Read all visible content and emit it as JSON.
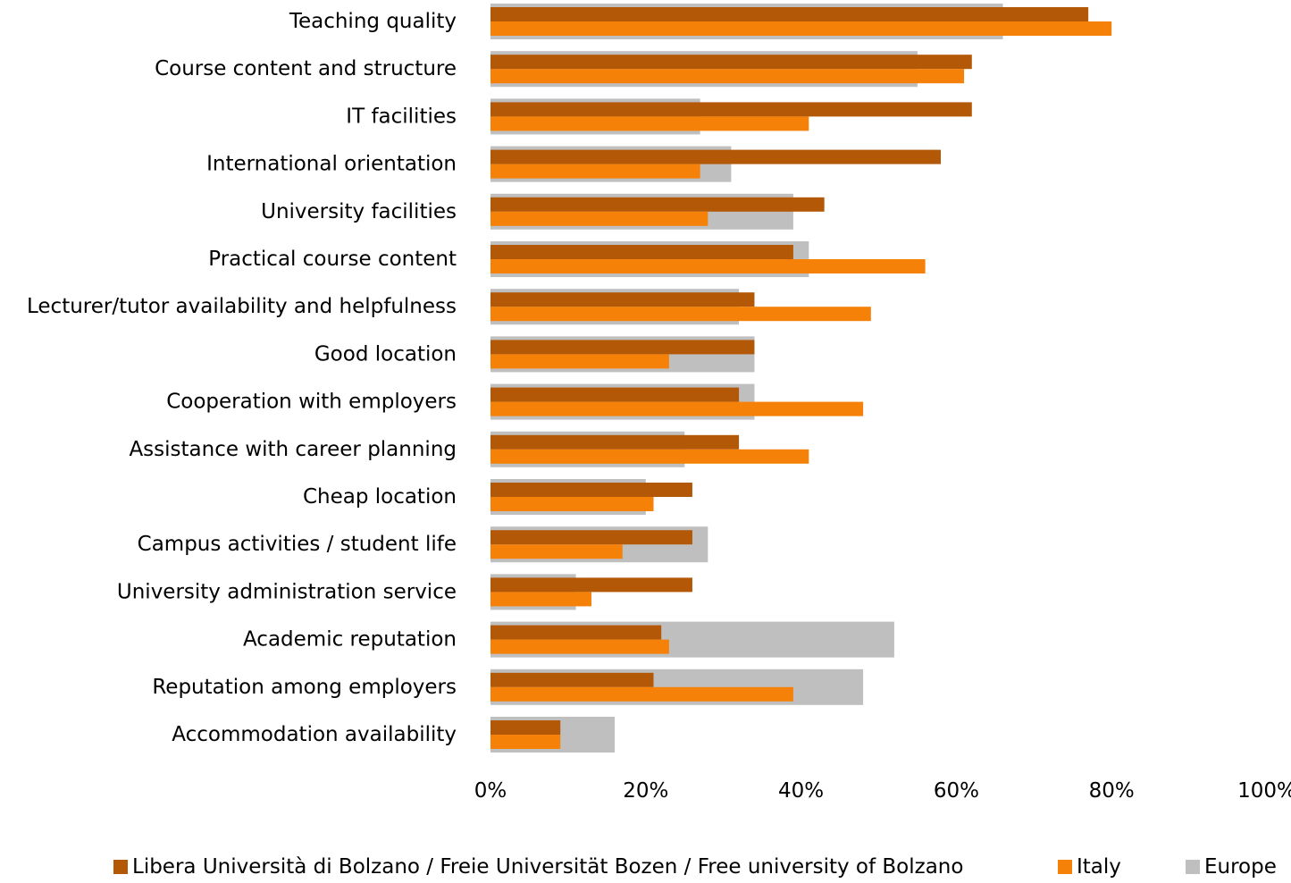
{
  "chart_data": {
    "type": "bar",
    "orientation": "horizontal",
    "categories": [
      "Teaching quality",
      "Course content and structure",
      "IT facilities",
      "International orientation",
      "University facilities",
      "Practical course content",
      "Lecturer/tutor availability and helpfulness",
      "Good location",
      "Cooperation with employers",
      "Assistance with career planning",
      "Cheap location",
      "Campus activities / student life",
      "University administration service",
      "Academic reputation",
      "Reputation among employers",
      "Accommodation availability"
    ],
    "series": [
      {
        "name": "Libera Università di Bolzano / Freie Universität Bozen / Free university of Bolzano",
        "color": "#b35806",
        "values": [
          77,
          62,
          62,
          58,
          43,
          39,
          34,
          34,
          32,
          32,
          26,
          26,
          26,
          22,
          21,
          9
        ]
      },
      {
        "name": "Italy",
        "color": "#f58108",
        "values": [
          80,
          61,
          41,
          27,
          28,
          56,
          49,
          23,
          48,
          41,
          21,
          17,
          13,
          23,
          39,
          9
        ]
      },
      {
        "name": "Europe",
        "color": "#bfbfbf",
        "values": [
          66,
          55,
          27,
          31,
          39,
          41,
          32,
          34,
          34,
          25,
          20,
          28,
          11,
          52,
          48,
          16
        ]
      }
    ],
    "xlim": [
      0,
      100
    ],
    "x_ticks": [
      "0%",
      "20%",
      "40%",
      "60%",
      "80%",
      "100%"
    ],
    "grid": false,
    "legend_position": "bottom"
  }
}
